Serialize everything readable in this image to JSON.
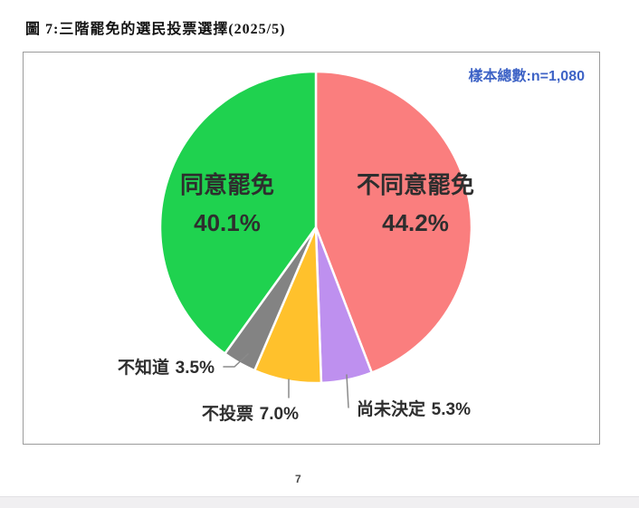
{
  "page": {
    "title": "圖 7:三階罷免的選民投票選擇(2025/5)",
    "page_number": "7"
  },
  "chart": {
    "sample_label": "樣本總數:n=1,080",
    "sample_label_color": "#3e63c6"
  },
  "chart_data": {
    "type": "pie",
    "title": "三階罷免的選民投票選擇(2025/5)",
    "sample_note": "樣本總數:n=1,080",
    "start_angle_deg": 0,
    "direction": "clockwise",
    "legend": "none",
    "slices": [
      {
        "key": "disagree",
        "label": "不同意罷免",
        "value": 44.2,
        "pct_display": "44.2%",
        "color": "#fa7e7e",
        "label_position": "inside"
      },
      {
        "key": "undecided",
        "label": "尚未決定",
        "value": 5.3,
        "pct_display": "5.3%",
        "color": "#be90ef",
        "label_position": "outside"
      },
      {
        "key": "novote",
        "label": "不投票",
        "value": 7.0,
        "pct_display": "7.0%",
        "color": "#ffc12c",
        "label_position": "outside"
      },
      {
        "key": "unknown",
        "label": "不知道",
        "value": 3.5,
        "pct_display": "3.5%",
        "color": "#838383",
        "label_position": "outside"
      },
      {
        "key": "agree",
        "label": "同意罷免",
        "value": 40.1,
        "pct_display": "40.1%",
        "color": "#1fd24f",
        "label_position": "inside"
      }
    ]
  }
}
